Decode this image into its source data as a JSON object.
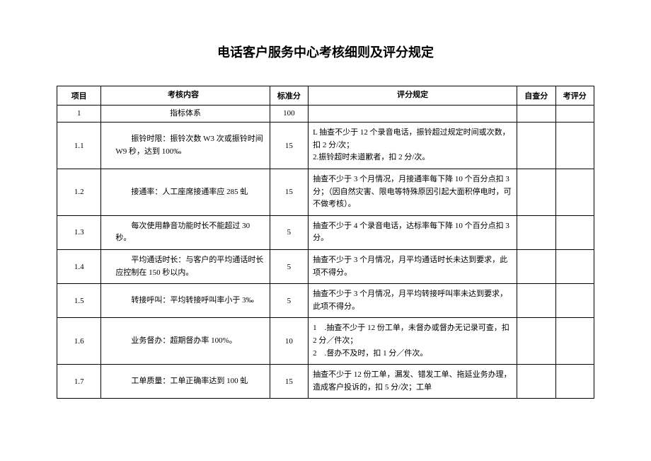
{
  "title": "电话客户服务中心考核细则及评分规定",
  "table": {
    "headers": {
      "col1": "项目",
      "col2": "考核内容",
      "col3": "标准分",
      "col4": "评分规定",
      "col5": "自查分",
      "col6": "考评分"
    },
    "rows": [
      {
        "id": "1",
        "content": "指标体系",
        "score": "100",
        "rule": "",
        "self": "",
        "eval": ""
      },
      {
        "id": "1.1",
        "content": "振铃时限：振铃次数 W3 次或振铃时间 W9 秒，达到 100‰",
        "score": "15",
        "rule": "L 抽查不少于 12 个录音电话，振铃超过规定时间或次数，扣 2 分/次；\n2.振铃超时未道歉者，扣 2 分/次。",
        "self": "",
        "eval": ""
      },
      {
        "id": "1.2",
        "content": "接通率：人工座席接通率应 285 虬",
        "score": "15",
        "rule": "抽查不少于 3 个月情况，月接通率每下降 10 个百分点扣 3 分；（因自然灾害、限电等特殊原因引起大面积停电时，可不做考核）。",
        "self": "",
        "eval": ""
      },
      {
        "id": "1.3",
        "content": "每次使用静音功能时长不能超过 30秒。",
        "score": "5",
        "rule": "抽查不少于 4 个录音电话，达标率每下降 10 个百分点扣 3 分。",
        "self": "",
        "eval": ""
      },
      {
        "id": "1.4",
        "content": "平均通话时长：与客户的平均通话时长应控制在 150 秒以内。",
        "score": "5",
        "rule": "抽查不少于 3 个月情况，月平均通话时长未达到要求，此项不得分。",
        "self": "",
        "eval": ""
      },
      {
        "id": "1.5",
        "content": "转接呼叫：平均转接呼叫率小于 3‰",
        "score": "5",
        "rule": "抽查不少于 3 个月情况，月平均转接呼叫率未达到要求，此项不得分。",
        "self": "",
        "eval": ""
      },
      {
        "id": "1.6",
        "content": "业务督办：超期督办率 100%。",
        "score": "10",
        "rule": "1　.抽查不少于 12 份工单，未督办或督办无记录可查，扣 2 分／件次；\n2　.督办不及时，扣 1 分／件次。",
        "self": "",
        "eval": ""
      },
      {
        "id": "1.7",
        "content": "工单质量：工单正确率达到 100 虬",
        "score": "15",
        "rule": "抽查不少于 12 份工单，漏发、错发工单、拖延业务办理，造成客户投诉的，扣 5 分/次；工单",
        "self": "",
        "eval": ""
      }
    ]
  }
}
